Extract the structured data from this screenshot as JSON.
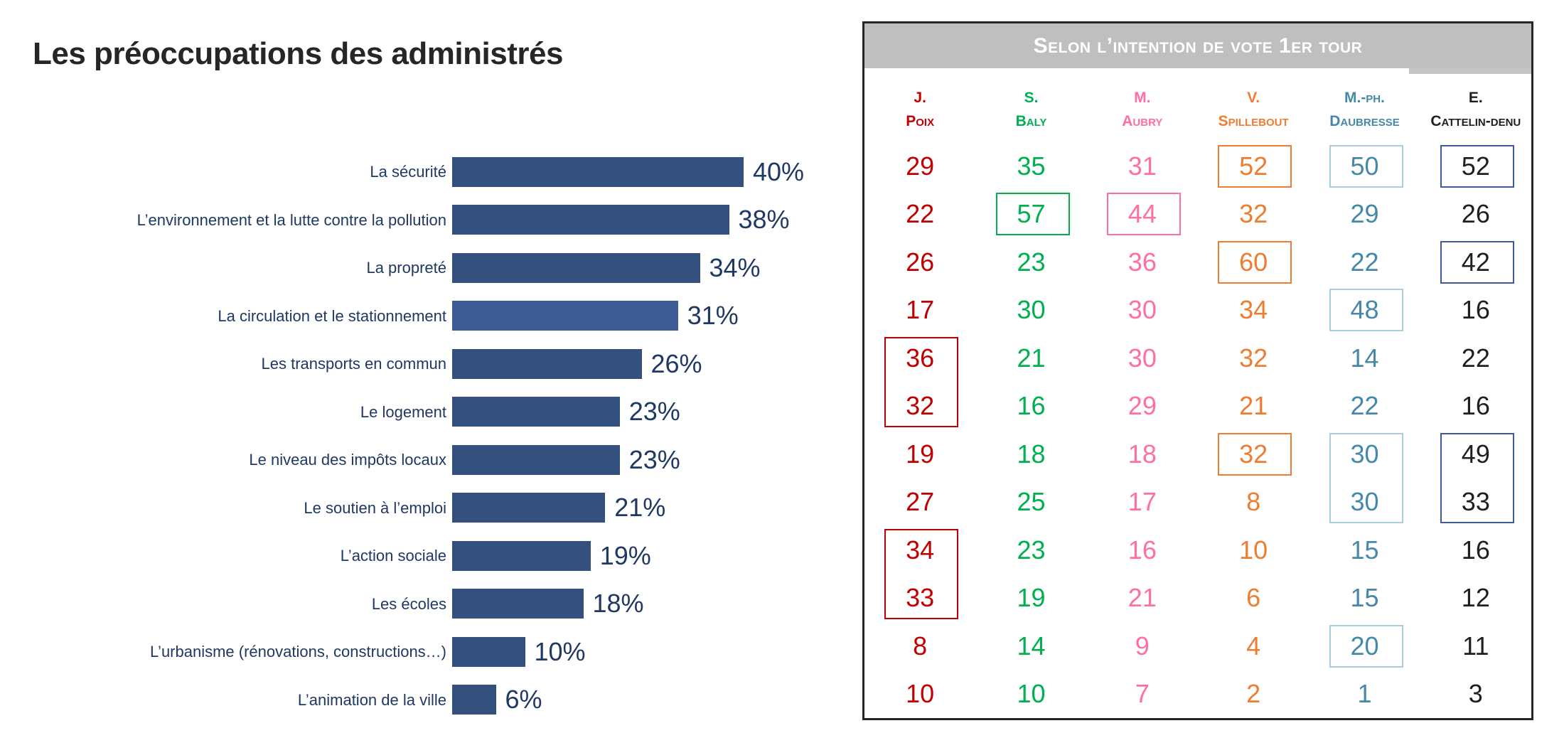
{
  "title": "Les préoccupations des administrés",
  "chart_data": {
    "type": "bar",
    "orientation": "horizontal",
    "title": "Les préoccupations des administrés",
    "categories": [
      "La sécurité",
      "L’environnement et la lutte contre la pollution",
      "La propreté",
      "La circulation et le stationnement",
      "Les transports en commun",
      "Le logement",
      "Le niveau des impôts locaux",
      "Le soutien à l’emploi",
      "L’action sociale",
      "Les écoles",
      "L’urbanisme (rénovations, constructions…)",
      "L’animation de la ville"
    ],
    "values": [
      40,
      38,
      34,
      31,
      26,
      23,
      23,
      21,
      19,
      18,
      10,
      6
    ],
    "value_suffix": "%",
    "xlim": [
      0,
      45
    ],
    "grid": false,
    "bar_color": "#33507F",
    "highlight_index": 3,
    "highlight_color": "#3D5B94",
    "label_color": "#1F3864"
  },
  "table": {
    "header": "Selon l’intention de vote 1er tour",
    "header_bg": "#BFBFBF",
    "header_text_color": "#FFFFFF",
    "columns": [
      {
        "initial": "J.",
        "surname": "Poix",
        "color": "#C00000",
        "box_color": "#C00000"
      },
      {
        "initial": "S.",
        "surname": "Baly",
        "color": "#00AF50",
        "box_color": "#00AF50"
      },
      {
        "initial": "M.",
        "surname": "Aubry",
        "color": "#FF6EA4",
        "box_color": "#FF6EA4"
      },
      {
        "initial": "V.",
        "surname": "Spillebout",
        "color": "#ED7D31",
        "box_color": "#ED7D31"
      },
      {
        "initial": "M.-Ph.",
        "surname": "Daubresse",
        "color": "#4588A9",
        "box_color": "#A9CDDE"
      },
      {
        "initial": "E.",
        "surname": "Cattelin-Denu",
        "color": "#1F1F1F",
        "box_color": "#3F5A99"
      }
    ],
    "rows": [
      [
        29,
        35,
        31,
        52,
        50,
        52
      ],
      [
        22,
        57,
        44,
        32,
        29,
        26
      ],
      [
        26,
        23,
        36,
        60,
        22,
        42
      ],
      [
        17,
        30,
        30,
        34,
        48,
        16
      ],
      [
        36,
        21,
        30,
        32,
        14,
        22
      ],
      [
        32,
        16,
        29,
        21,
        22,
        16
      ],
      [
        19,
        18,
        18,
        32,
        30,
        49
      ],
      [
        27,
        25,
        17,
        8,
        30,
        33
      ],
      [
        34,
        23,
        16,
        10,
        15,
        16
      ],
      [
        33,
        19,
        21,
        6,
        15,
        12
      ],
      [
        8,
        14,
        9,
        4,
        20,
        11
      ],
      [
        10,
        10,
        7,
        2,
        1,
        3
      ]
    ],
    "boxes": [
      {
        "col": 3,
        "row_start": 0,
        "row_end": 0
      },
      {
        "col": 4,
        "row_start": 0,
        "row_end": 0
      },
      {
        "col": 5,
        "row_start": 0,
        "row_end": 0
      },
      {
        "col": 1,
        "row_start": 1,
        "row_end": 1
      },
      {
        "col": 2,
        "row_start": 1,
        "row_end": 1
      },
      {
        "col": 3,
        "row_start": 2,
        "row_end": 2
      },
      {
        "col": 5,
        "row_start": 2,
        "row_end": 2
      },
      {
        "col": 4,
        "row_start": 3,
        "row_end": 3
      },
      {
        "col": 0,
        "row_start": 4,
        "row_end": 5
      },
      {
        "col": 3,
        "row_start": 6,
        "row_end": 6
      },
      {
        "col": 4,
        "row_start": 6,
        "row_end": 7
      },
      {
        "col": 5,
        "row_start": 6,
        "row_end": 7
      },
      {
        "col": 0,
        "row_start": 8,
        "row_end": 9
      },
      {
        "col": 4,
        "row_start": 10,
        "row_end": 10
      }
    ]
  }
}
